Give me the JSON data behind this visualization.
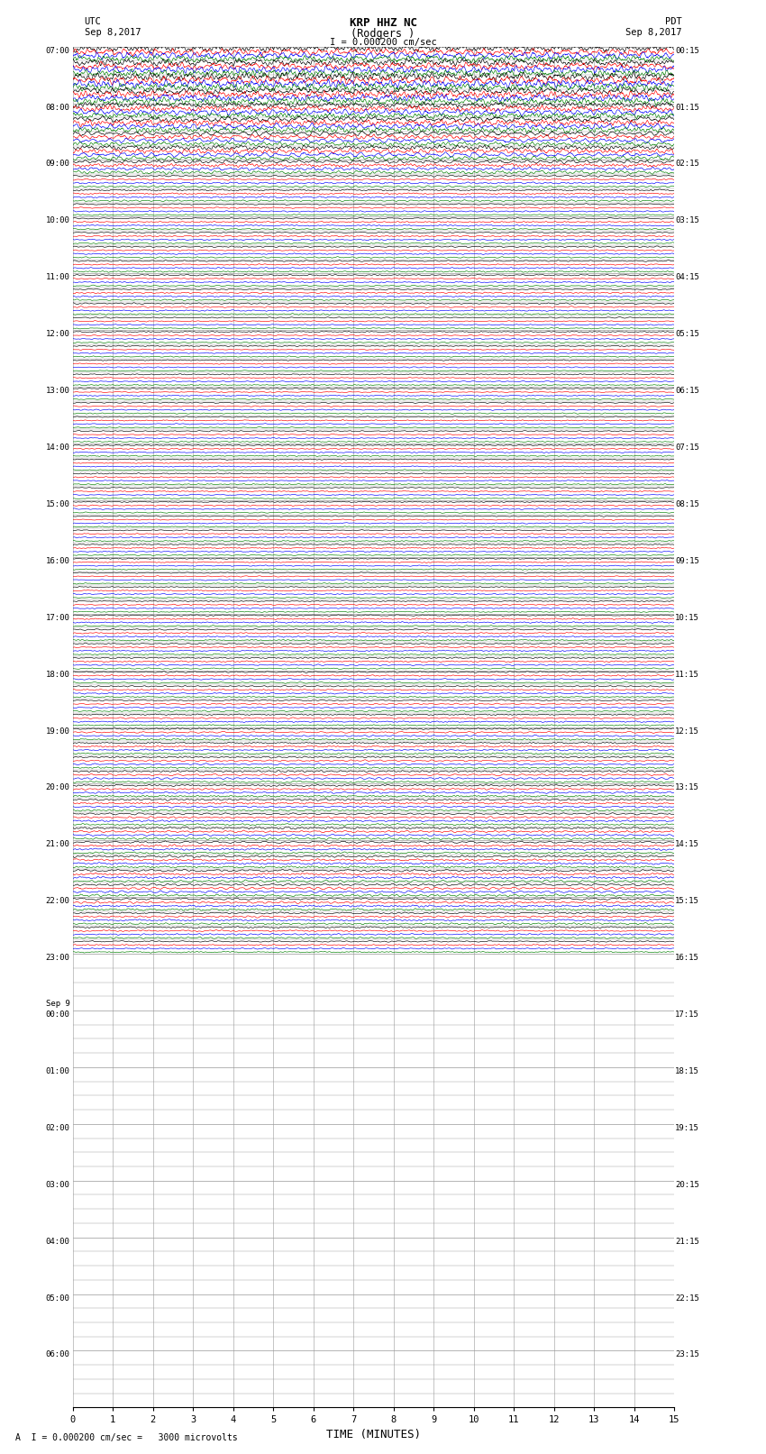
{
  "title_line1": "KRP HHZ NC",
  "title_line2": "(Rodgers )",
  "scale_label": "I = 0.000200 cm/sec",
  "utc_label": "UTC",
  "utc_date": "Sep 8,2017",
  "pdt_label": "PDT",
  "pdt_date": "Sep 8,2017",
  "xlabel": "TIME (MINUTES)",
  "bottom_annotation": "A  I = 0.000200 cm/sec =   3000 microvolts",
  "xlim": [
    0,
    15
  ],
  "trace_colors": [
    "black",
    "red",
    "blue",
    "green"
  ],
  "background_color": "white",
  "grid_color": "#999999",
  "n_rows": 96,
  "traces_per_row": 4,
  "noise_seed": 42,
  "fig_width": 8.5,
  "fig_height": 16.13,
  "dpi": 100,
  "left_labels": {
    "0": "07:00",
    "4": "08:00",
    "8": "09:00",
    "12": "10:00",
    "16": "11:00",
    "20": "12:00",
    "24": "13:00",
    "28": "14:00",
    "32": "15:00",
    "36": "16:00",
    "40": "17:00",
    "44": "18:00",
    "48": "19:00",
    "52": "20:00",
    "56": "21:00",
    "60": "22:00",
    "64": "23:00",
    "68": "Sep 9\n00:00",
    "72": "01:00",
    "76": "02:00",
    "80": "03:00",
    "84": "04:00",
    "88": "05:00",
    "92": "06:00"
  },
  "right_labels": {
    "0": "00:15",
    "4": "01:15",
    "8": "02:15",
    "12": "03:15",
    "16": "04:15",
    "20": "05:15",
    "24": "06:15",
    "28": "07:15",
    "32": "08:15",
    "36": "09:15",
    "40": "10:15",
    "44": "11:15",
    "48": "12:15",
    "52": "13:15",
    "56": "14:15",
    "60": "15:15",
    "64": "16:15",
    "68": "17:15",
    "72": "18:15",
    "76": "19:15",
    "80": "20:15",
    "84": "21:15",
    "88": "22:15",
    "92": "23:15"
  },
  "data_rows": 64,
  "amp_profile": [
    3.0,
    3.0,
    3.5,
    3.0,
    2.5,
    2.5,
    2.0,
    2.0,
    1.5,
    0.8,
    0.7,
    0.6,
    0.6,
    0.6,
    0.6,
    0.6,
    0.6,
    0.6,
    0.6,
    0.5,
    0.5,
    0.5,
    0.5,
    0.5,
    0.5,
    0.5,
    0.5,
    0.5,
    0.5,
    0.5,
    0.5,
    0.5,
    0.5,
    0.5,
    0.5,
    0.5,
    0.5,
    0.5,
    0.5,
    0.5,
    0.6,
    0.6,
    0.6,
    0.6,
    0.6,
    0.6,
    0.6,
    0.6,
    0.7,
    0.7,
    0.7,
    0.8,
    0.8,
    0.8,
    0.8,
    0.9,
    0.9,
    0.9,
    1.0,
    1.0,
    0.9,
    0.8,
    0.7,
    0.6
  ]
}
